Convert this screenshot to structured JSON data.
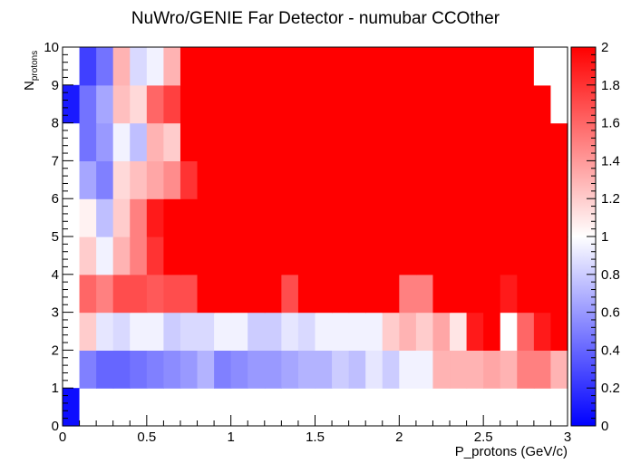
{
  "chart_data": {
    "type": "heatmap",
    "title": "NuWro/GENIE Far Detector - numubar CCOther",
    "xlabel": "P_protons (GeV/c)",
    "ylabel_main": "N",
    "ylabel_sub": "protons",
    "xlim": [
      0,
      3
    ],
    "ylim": [
      0,
      10
    ],
    "zlim": [
      0,
      2
    ],
    "x_bin_width": 0.1,
    "y_bin_width": 1,
    "x_ticks": [
      "0",
      "0.5",
      "1",
      "1.5",
      "2",
      "2.5",
      "3"
    ],
    "y_ticks": [
      "0",
      "1",
      "2",
      "3",
      "4",
      "5",
      "6",
      "7",
      "8",
      "9",
      "10"
    ],
    "z_ticks": [
      "0",
      "0.2",
      "0.4",
      "0.6",
      "0.8",
      "1",
      "1.2",
      "1.4",
      "1.6",
      "1.8",
      "2"
    ],
    "palette": {
      "low": "#0000ff",
      "mid": "#ffffff",
      "high": "#ff0000"
    },
    "rows": [
      [
        0.05,
        1.0,
        1.0,
        1.0,
        1.0,
        1.0,
        1.0,
        1.0,
        1.0,
        1.0,
        1.0,
        1.0,
        1.0,
        1.0,
        1.0,
        1.0,
        1.0,
        1.0,
        1.0,
        1.0,
        1.0,
        1.0,
        1.0,
        1.0,
        1.0,
        1.0,
        1.0,
        1.0,
        1.0,
        1.0
      ],
      [
        null,
        0.5,
        0.4,
        0.4,
        0.45,
        0.5,
        0.55,
        0.6,
        0.7,
        0.5,
        0.55,
        0.6,
        0.6,
        0.65,
        0.7,
        0.7,
        0.8,
        0.75,
        0.9,
        0.8,
        0.95,
        0.95,
        1.3,
        1.3,
        1.3,
        1.35,
        1.3,
        1.5,
        1.5,
        1.3
      ],
      [
        null,
        1.2,
        0.9,
        0.85,
        0.95,
        0.95,
        0.8,
        0.85,
        0.85,
        0.95,
        0.95,
        0.8,
        0.8,
        0.9,
        0.85,
        0.95,
        0.95,
        0.95,
        0.95,
        1.2,
        1.3,
        1.2,
        1.35,
        1.1,
        1.9,
        2.0,
        1.0,
        1.6,
        1.9,
        2.0
      ],
      [
        null,
        1.6,
        1.5,
        1.7,
        1.7,
        1.65,
        1.7,
        1.7,
        2.0,
        2.0,
        2.0,
        2.0,
        2.0,
        1.7,
        2.0,
        2.0,
        2.0,
        2.0,
        2.0,
        2.0,
        1.5,
        1.5,
        2.0,
        2.0,
        2.0,
        2.0,
        1.9,
        2.0,
        2.0,
        2.0
      ],
      [
        null,
        1.2,
        0.95,
        1.3,
        1.5,
        1.8,
        2.0,
        2.0,
        2.0,
        2.0,
        2.0,
        2.0,
        2.0,
        2.0,
        2.0,
        2.0,
        2.0,
        2.0,
        2.0,
        2.0,
        2.0,
        2.0,
        2.0,
        2.0,
        2.0,
        2.0,
        2.0,
        2.0,
        2.0,
        2.0
      ],
      [
        null,
        1.05,
        0.75,
        1.2,
        1.5,
        1.9,
        2.0,
        2.0,
        2.0,
        2.0,
        2.0,
        2.0,
        2.0,
        2.0,
        2.0,
        2.0,
        2.0,
        2.0,
        2.0,
        2.0,
        2.0,
        2.0,
        2.0,
        2.0,
        2.0,
        2.0,
        2.0,
        2.0,
        2.0,
        2.0
      ],
      [
        null,
        0.65,
        0.5,
        1.15,
        1.25,
        1.35,
        1.45,
        1.8,
        2.0,
        2.0,
        2.0,
        2.0,
        2.0,
        2.0,
        2.0,
        2.0,
        2.0,
        2.0,
        2.0,
        2.0,
        2.0,
        2.0,
        2.0,
        2.0,
        2.0,
        2.0,
        2.0,
        2.0,
        2.0,
        2.0
      ],
      [
        null,
        0.45,
        0.6,
        0.95,
        0.75,
        1.3,
        1.2,
        2.0,
        2.0,
        2.0,
        2.0,
        2.0,
        2.0,
        2.0,
        2.0,
        2.0,
        2.0,
        2.0,
        2.0,
        2.0,
        2.0,
        2.0,
        2.0,
        2.0,
        2.0,
        2.0,
        2.0,
        2.0,
        2.0,
        2.0
      ],
      [
        0.1,
        0.45,
        0.65,
        1.25,
        1.15,
        1.6,
        1.75,
        2.0,
        2.0,
        2.0,
        2.0,
        2.0,
        2.0,
        2.0,
        2.0,
        2.0,
        2.0,
        2.0,
        2.0,
        2.0,
        2.0,
        2.0,
        2.0,
        2.0,
        2.0,
        2.0,
        2.0,
        2.0,
        2.0,
        1.0
      ],
      [
        null,
        0.25,
        0.45,
        1.3,
        0.85,
        0.95,
        1.3,
        2.0,
        2.0,
        2.0,
        2.0,
        2.0,
        2.0,
        2.0,
        2.0,
        2.0,
        2.0,
        2.0,
        2.0,
        2.0,
        2.0,
        2.0,
        2.0,
        2.0,
        2.0,
        2.0,
        2.0,
        2.0,
        1.0,
        1.0
      ]
    ]
  }
}
